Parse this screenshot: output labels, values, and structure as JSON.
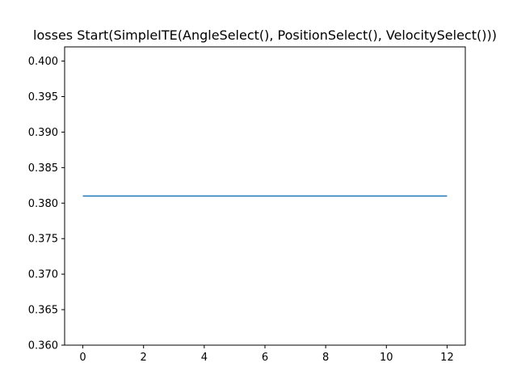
{
  "chart_data": {
    "type": "line",
    "title": "losses Start(SimpleITE(AngleSelect(), PositionSelect(), VelocitySelect()))",
    "xlabel": "",
    "ylabel": "",
    "xlim": [
      -0.6,
      12.6
    ],
    "ylim": [
      0.36,
      0.402
    ],
    "x_ticks": [
      0,
      2,
      4,
      6,
      8,
      10,
      12
    ],
    "x_tick_labels": [
      "0",
      "2",
      "4",
      "6",
      "8",
      "10",
      "12"
    ],
    "y_ticks": [
      0.36,
      0.365,
      0.37,
      0.375,
      0.38,
      0.385,
      0.39,
      0.395,
      0.4
    ],
    "y_tick_labels": [
      "0.360",
      "0.365",
      "0.370",
      "0.375",
      "0.380",
      "0.385",
      "0.390",
      "0.395",
      "0.400"
    ],
    "grid": false,
    "series": [
      {
        "color": "#1f77b4",
        "x": [
          0,
          1,
          2,
          3,
          4,
          5,
          6,
          7,
          8,
          9,
          10,
          11,
          12
        ],
        "y": [
          0.381,
          0.381,
          0.381,
          0.381,
          0.381,
          0.381,
          0.381,
          0.381,
          0.381,
          0.381,
          0.381,
          0.381,
          0.381
        ]
      }
    ]
  }
}
